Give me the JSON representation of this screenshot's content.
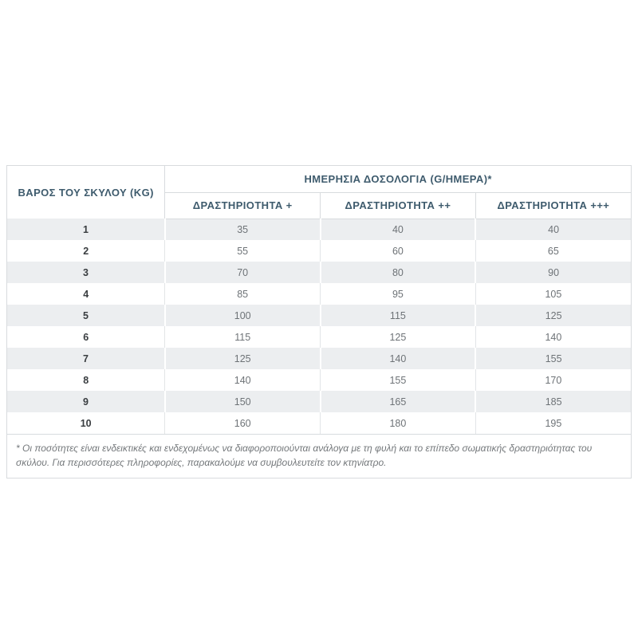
{
  "table": {
    "weight_header": "ΒΑΡΟΣ ΤΟΥ ΣΚΥΛΟΥ (KG)",
    "dosage_group_header": "ΗΜΕΡΗΣΙΑ ΔΟΣΟΛΟΓΙΑ (G/ΗΜΕΡΑ)*",
    "activity_headers": [
      "ΔΡΑΣΤΗΡΙΟΤΗΤΑ +",
      "ΔΡΑΣΤΗΡΙΟΤΗΤΑ ++",
      "ΔΡΑΣΤΗΡΙΟΤΗΤΑ +++"
    ],
    "rows": [
      {
        "weight": "1",
        "values": [
          "35",
          "40",
          "40"
        ]
      },
      {
        "weight": "2",
        "values": [
          "55",
          "60",
          "65"
        ]
      },
      {
        "weight": "3",
        "values": [
          "70",
          "80",
          "90"
        ]
      },
      {
        "weight": "4",
        "values": [
          "85",
          "95",
          "105"
        ]
      },
      {
        "weight": "5",
        "values": [
          "100",
          "115",
          "125"
        ]
      },
      {
        "weight": "6",
        "values": [
          "115",
          "125",
          "140"
        ]
      },
      {
        "weight": "7",
        "values": [
          "125",
          "140",
          "155"
        ]
      },
      {
        "weight": "8",
        "values": [
          "140",
          "155",
          "170"
        ]
      },
      {
        "weight": "9",
        "values": [
          "150",
          "165",
          "185"
        ]
      },
      {
        "weight": "10",
        "values": [
          "160",
          "180",
          "195"
        ]
      }
    ],
    "footnote": "* Οι ποσότητες είναι ενδεικτικές και ενδεχομένως να διαφοροποιούνται ανάλογα με τη φυλή και το επίπεδο σωματικής δραστηριότητας του σκύλου. Για περισσότερες πληροφορίες, παρακαλούμε να συμβουλευτείτε τον κτηνίατρο."
  },
  "colors": {
    "header_text": "#3e5b6d",
    "weight_text": "#393d40",
    "value_text": "#6e7377",
    "stripe_row": "#eceef0",
    "border": "#d8dbde",
    "footnote_text": "#74787b",
    "page_background": "#ffffff"
  }
}
